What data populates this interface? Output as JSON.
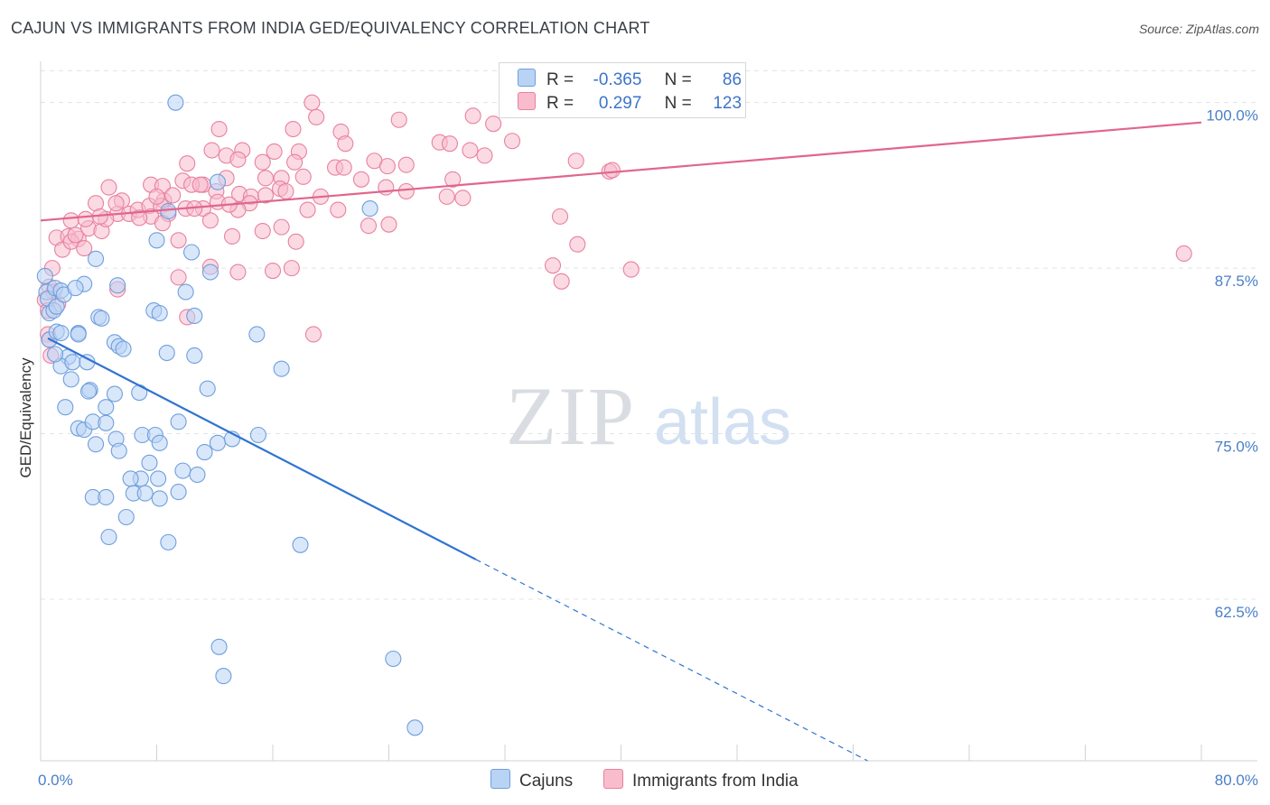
{
  "title": "CAJUN VS IMMIGRANTS FROM INDIA GED/EQUIVALENCY CORRELATION CHART",
  "source": "Source: ZipAtlas.com",
  "watermark": {
    "zip": "ZIP",
    "atlas": "atlas"
  },
  "legend": {
    "rows": [
      {
        "r_label": "R =",
        "r_value": "-0.365",
        "n_label": "N =",
        "n_value": "86",
        "color": "#b9d3f5",
        "border": "#6f9fdc"
      },
      {
        "r_label": "R =",
        "r_value": "0.297",
        "n_label": "N =",
        "n_value": "123",
        "color": "#f8bccd",
        "border": "#e8819f"
      }
    ]
  },
  "bottom_legend": {
    "cajuns": "Cajuns",
    "india": "Immigrants from India"
  },
  "chart_data": {
    "type": "scatter",
    "title": "CAJUN VS IMMIGRANTS FROM INDIA GED/EQUIVALENCY CORRELATION CHART",
    "xlabel": "",
    "ylabel": "GED/Equivalency",
    "xlim": [
      0,
      80
    ],
    "ylim": [
      50.3,
      102.5
    ],
    "x_tick_labels": [
      "0.0%",
      "80.0%"
    ],
    "y_ticks": [
      62.5,
      75.0,
      87.5,
      100.0
    ],
    "y_tick_labels": [
      "62.5%",
      "75.0%",
      "87.5%",
      "100.0%"
    ],
    "grid": true,
    "legend_position": "top-center",
    "series": [
      {
        "name": "Cajuns",
        "color": "#6f9fdc",
        "fill": "#b9d3f5",
        "trend": {
          "x_start": 0.5,
          "y_start": 82.2,
          "x_solid_end": 30.0,
          "y_solid_end": 65.5,
          "x_dash_end": 57.0,
          "y_dash_end": 50.3
        },
        "points": [
          [
            9.3,
            100.0
          ],
          [
            0.3,
            86.9
          ],
          [
            0.4,
            85.7
          ],
          [
            0.5,
            85.2
          ],
          [
            0.6,
            84.1
          ],
          [
            0.9,
            84.3
          ],
          [
            1.0,
            86.0
          ],
          [
            1.1,
            84.6
          ],
          [
            1.4,
            85.8
          ],
          [
            1.6,
            85.5
          ],
          [
            0.6,
            82.1
          ],
          [
            1.1,
            82.7
          ],
          [
            1.4,
            82.6
          ],
          [
            1.9,
            80.8
          ],
          [
            1.4,
            80.1
          ],
          [
            2.2,
            80.4
          ],
          [
            3.2,
            80.4
          ],
          [
            2.6,
            82.6
          ],
          [
            2.6,
            82.5
          ],
          [
            2.1,
            79.1
          ],
          [
            3.4,
            78.3
          ],
          [
            3.3,
            78.2
          ],
          [
            5.1,
            78.0
          ],
          [
            6.8,
            78.1
          ],
          [
            4.5,
            77.0
          ],
          [
            1.7,
            77.0
          ],
          [
            2.6,
            75.4
          ],
          [
            3.0,
            75.3
          ],
          [
            3.6,
            75.9
          ],
          [
            4.5,
            75.8
          ],
          [
            5.2,
            74.6
          ],
          [
            5.4,
            73.7
          ],
          [
            3.8,
            74.2
          ],
          [
            7.0,
            74.9
          ],
          [
            7.9,
            74.9
          ],
          [
            8.2,
            74.3
          ],
          [
            9.5,
            75.9
          ],
          [
            11.3,
            73.6
          ],
          [
            12.2,
            74.3
          ],
          [
            13.2,
            74.6
          ],
          [
            7.5,
            72.8
          ],
          [
            9.8,
            72.2
          ],
          [
            10.8,
            71.9
          ],
          [
            6.9,
            71.6
          ],
          [
            6.2,
            71.6
          ],
          [
            8.1,
            71.6
          ],
          [
            6.4,
            70.5
          ],
          [
            7.2,
            70.5
          ],
          [
            9.5,
            70.6
          ],
          [
            3.6,
            70.2
          ],
          [
            4.5,
            70.2
          ],
          [
            5.9,
            68.7
          ],
          [
            8.2,
            70.1
          ],
          [
            4.7,
            67.2
          ],
          [
            8.8,
            66.8
          ],
          [
            17.9,
            66.6
          ],
          [
            3.8,
            88.2
          ],
          [
            5.3,
            86.2
          ],
          [
            8.0,
            89.6
          ],
          [
            3.0,
            86.3
          ],
          [
            2.4,
            86.0
          ],
          [
            4.0,
            83.8
          ],
          [
            4.2,
            83.7
          ],
          [
            5.1,
            81.9
          ],
          [
            5.4,
            81.6
          ],
          [
            5.7,
            81.4
          ],
          [
            7.8,
            84.3
          ],
          [
            8.2,
            84.1
          ],
          [
            10.6,
            83.9
          ],
          [
            8.7,
            81.1
          ],
          [
            10.6,
            80.9
          ],
          [
            11.5,
            78.4
          ],
          [
            16.6,
            79.9
          ],
          [
            14.9,
            82.5
          ],
          [
            15.0,
            74.9
          ],
          [
            10.0,
            85.7
          ],
          [
            10.4,
            88.7
          ],
          [
            11.7,
            87.2
          ],
          [
            8.8,
            91.8
          ],
          [
            12.2,
            94.0
          ],
          [
            22.7,
            92.0
          ],
          [
            12.3,
            58.9
          ],
          [
            12.6,
            56.7
          ],
          [
            24.3,
            58.0
          ],
          [
            25.8,
            52.8
          ],
          [
            1.0,
            81.0
          ]
        ]
      },
      {
        "name": "Immigrants from India",
        "color": "#e8819f",
        "fill": "#f8bccd",
        "trend": {
          "x_start": 0.0,
          "y_start": 91.1,
          "x_end": 80.0,
          "y_end": 98.5
        },
        "points": [
          [
            18.7,
            100.0
          ],
          [
            19.0,
            98.9
          ],
          [
            12.3,
            98.0
          ],
          [
            17.4,
            98.0
          ],
          [
            20.7,
            97.8
          ],
          [
            24.7,
            98.7
          ],
          [
            29.8,
            99.0
          ],
          [
            31.2,
            98.4
          ],
          [
            32.5,
            97.1
          ],
          [
            21.0,
            96.9
          ],
          [
            27.5,
            97.0
          ],
          [
            28.2,
            96.9
          ],
          [
            29.6,
            96.4
          ],
          [
            30.6,
            96.0
          ],
          [
            13.9,
            96.4
          ],
          [
            16.1,
            96.3
          ],
          [
            17.8,
            96.3
          ],
          [
            11.8,
            96.4
          ],
          [
            12.8,
            96.0
          ],
          [
            13.6,
            95.7
          ],
          [
            15.3,
            95.5
          ],
          [
            17.5,
            95.5
          ],
          [
            23.0,
            95.6
          ],
          [
            23.9,
            95.2
          ],
          [
            25.2,
            95.3
          ],
          [
            20.3,
            95.1
          ],
          [
            20.9,
            95.1
          ],
          [
            10.1,
            95.4
          ],
          [
            9.8,
            94.1
          ],
          [
            11.2,
            93.8
          ],
          [
            12.8,
            94.3
          ],
          [
            15.5,
            94.3
          ],
          [
            16.6,
            94.3
          ],
          [
            18.1,
            94.4
          ],
          [
            22.1,
            94.2
          ],
          [
            28.4,
            94.2
          ],
          [
            36.9,
            95.6
          ],
          [
            39.2,
            94.8
          ],
          [
            4.7,
            93.6
          ],
          [
            7.6,
            93.8
          ],
          [
            8.4,
            93.7
          ],
          [
            10.4,
            93.8
          ],
          [
            11.0,
            93.8
          ],
          [
            12.1,
            93.3
          ],
          [
            13.7,
            93.1
          ],
          [
            14.5,
            92.9
          ],
          [
            15.5,
            93.0
          ],
          [
            16.5,
            93.5
          ],
          [
            16.9,
            93.3
          ],
          [
            19.3,
            92.9
          ],
          [
            23.8,
            93.6
          ],
          [
            25.2,
            93.3
          ],
          [
            28.0,
            92.9
          ],
          [
            29.1,
            92.8
          ],
          [
            3.8,
            92.4
          ],
          [
            5.6,
            92.6
          ],
          [
            8.5,
            92.6
          ],
          [
            9.1,
            93.0
          ],
          [
            12.2,
            92.5
          ],
          [
            14.4,
            92.4
          ],
          [
            1.1,
            89.8
          ],
          [
            1.9,
            89.9
          ],
          [
            2.6,
            89.7
          ],
          [
            3.3,
            90.5
          ],
          [
            4.2,
            90.3
          ],
          [
            5.3,
            91.6
          ],
          [
            6.1,
            91.6
          ],
          [
            6.7,
            91.9
          ],
          [
            7.5,
            92.2
          ],
          [
            8.3,
            92.2
          ],
          [
            10.0,
            92.0
          ],
          [
            11.2,
            92.0
          ],
          [
            13.6,
            91.9
          ],
          [
            18.4,
            91.9
          ],
          [
            20.5,
            91.9
          ],
          [
            2.1,
            91.1
          ],
          [
            3.1,
            91.2
          ],
          [
            4.5,
            91.2
          ],
          [
            7.6,
            91.4
          ],
          [
            8.8,
            91.6
          ],
          [
            11.7,
            91.1
          ],
          [
            15.3,
            90.3
          ],
          [
            16.6,
            90.6
          ],
          [
            22.6,
            90.7
          ],
          [
            24.0,
            90.8
          ],
          [
            35.8,
            91.4
          ],
          [
            1.5,
            88.9
          ],
          [
            2.1,
            89.5
          ],
          [
            3.0,
            89.0
          ],
          [
            9.5,
            89.6
          ],
          [
            13.2,
            89.9
          ],
          [
            17.6,
            89.5
          ],
          [
            0.8,
            87.5
          ],
          [
            11.7,
            87.6
          ],
          [
            13.6,
            87.2
          ],
          [
            16.0,
            87.3
          ],
          [
            17.3,
            87.5
          ],
          [
            35.3,
            87.7
          ],
          [
            37.0,
            89.3
          ],
          [
            40.7,
            87.4
          ],
          [
            78.8,
            88.6
          ],
          [
            35.9,
            86.5
          ],
          [
            0.6,
            86.1
          ],
          [
            0.9,
            85.7
          ],
          [
            1.2,
            84.8
          ],
          [
            0.3,
            85.1
          ],
          [
            0.5,
            84.3
          ],
          [
            9.5,
            86.8
          ],
          [
            5.3,
            85.9
          ],
          [
            10.1,
            83.8
          ],
          [
            18.8,
            82.5
          ],
          [
            0.5,
            82.5
          ],
          [
            0.6,
            82.1
          ],
          [
            0.7,
            80.9
          ],
          [
            8.4,
            90.9
          ],
          [
            4.1,
            91.4
          ],
          [
            6.8,
            91.3
          ],
          [
            8.0,
            92.9
          ],
          [
            10.6,
            92.0
          ],
          [
            5.2,
            92.4
          ],
          [
            13.0,
            92.3
          ],
          [
            2.4,
            90.0
          ],
          [
            39.4,
            94.9
          ]
        ]
      }
    ]
  }
}
